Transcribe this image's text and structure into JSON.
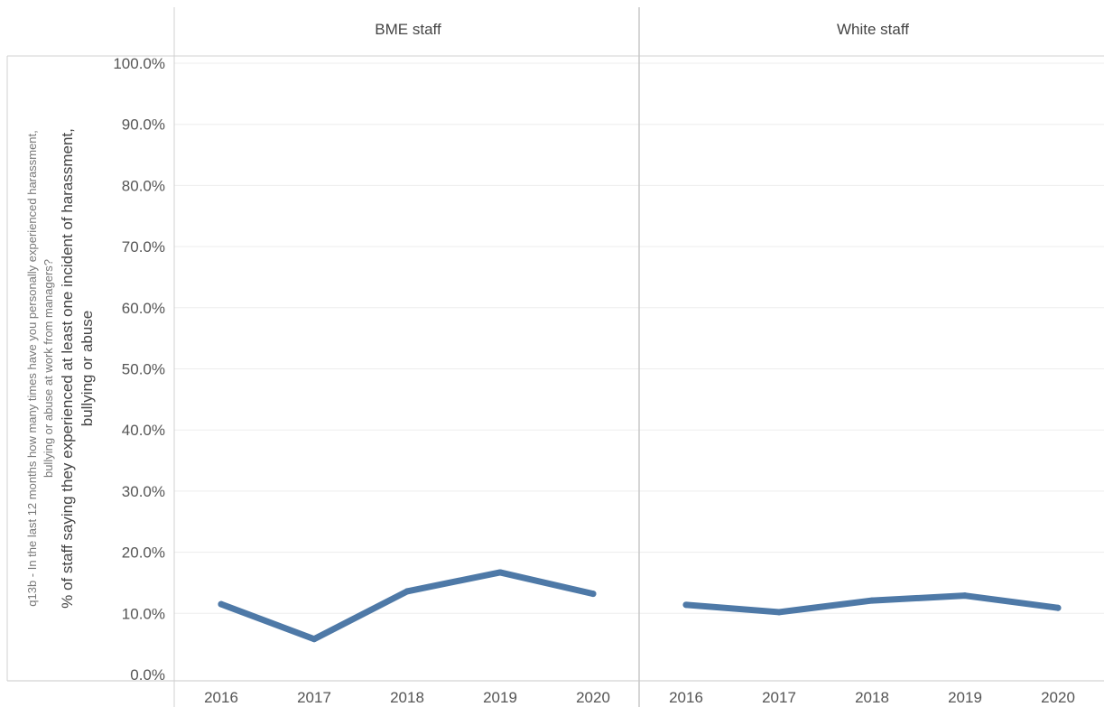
{
  "chart_data": {
    "type": "line",
    "yaxis_outer_label": "q13b - In the last 12 months how many times have you personally experienced harassment, bullying or abuse at work from managers?",
    "ylabel": "% of staff saying they experienced at least one incident of harassment, bullying or abuse",
    "ylim": [
      0,
      100
    ],
    "y_ticks": [
      "0.0%",
      "10.0%",
      "20.0%",
      "30.0%",
      "40.0%",
      "50.0%",
      "60.0%",
      "70.0%",
      "80.0%",
      "90.0%",
      "100.0%"
    ],
    "y_tick_values": [
      0,
      10,
      20,
      30,
      40,
      50,
      60,
      70,
      80,
      90,
      100
    ],
    "grid": true,
    "line_color": "#4e79a7",
    "panels": [
      {
        "title": "BME staff",
        "x": [
          "2016",
          "2017",
          "2018",
          "2019",
          "2020"
        ],
        "values": [
          11.5,
          5.8,
          13.6,
          16.7,
          13.2
        ]
      },
      {
        "title": "White staff",
        "x": [
          "2016",
          "2017",
          "2018",
          "2019",
          "2020"
        ],
        "values": [
          11.4,
          10.2,
          12.1,
          12.9,
          10.9
        ]
      }
    ]
  }
}
